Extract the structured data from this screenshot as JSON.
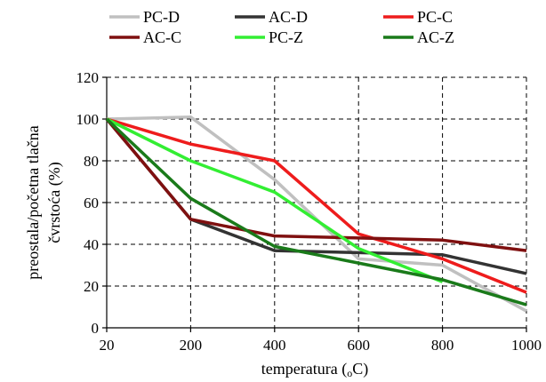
{
  "chart_data": {
    "type": "line",
    "title": "",
    "xlabel": "temperatura (",
    "xlabel_sub": "o",
    "xlabel_end": "C)",
    "ylabel_line1": "preostala/početna tlačna",
    "ylabel_line2": "čvrstoća (%)",
    "categories": [
      "20",
      "200",
      "400",
      "600",
      "800",
      "1000"
    ],
    "y_ticks": [
      "0",
      "20",
      "40",
      "60",
      "80",
      "100",
      "120"
    ],
    "ylim": [
      0,
      120
    ],
    "grid": true,
    "legend_position": "top",
    "series": [
      {
        "name": "PC-D",
        "color": "#c0c0c0",
        "values": [
          100,
          101,
          71,
          33,
          30,
          8
        ]
      },
      {
        "name": "AC-D",
        "color": "#333333",
        "values": [
          100,
          52,
          37,
          36,
          35,
          26
        ]
      },
      {
        "name": "PC-C",
        "color": "#ee1c1c",
        "values": [
          100,
          88,
          80,
          45,
          33,
          17
        ]
      },
      {
        "name": "AC-C",
        "color": "#7f1010",
        "values": [
          100,
          52,
          44,
          43,
          42,
          37
        ]
      },
      {
        "name": "PC-Z",
        "color": "#33ee33",
        "values": [
          100,
          80,
          65,
          38,
          22,
          null
        ]
      },
      {
        "name": "AC-Z",
        "color": "#1a7a1a",
        "values": [
          100,
          62,
          39,
          31,
          23,
          11
        ]
      }
    ]
  }
}
